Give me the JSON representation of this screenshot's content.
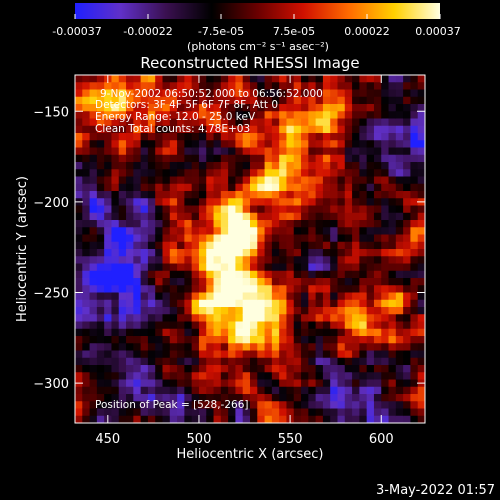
{
  "chart_data": {
    "type": "heatmap",
    "title": "Reconstructed RHESSI Image",
    "xlabel": "Heliocentric X (arcsec)",
    "ylabel": "Heliocentric Y (arcsec)",
    "xlim": [
      432,
      624
    ],
    "ylim": [
      -322,
      -130
    ],
    "x_ticks": [
      450,
      500,
      550,
      600
    ],
    "y_ticks": [
      -150,
      -200,
      -250,
      -300
    ],
    "colorbar": {
      "range": [
        -0.00037,
        0.00037
      ],
      "ticks": [
        "-0.00037",
        "-0.00022",
        "-7.5e-05",
        "7.5e-05",
        "0.00022",
        "0.00037"
      ],
      "label": "(photons cm⁻² s⁻¹ asec⁻²)",
      "colormap": [
        "#2020ff",
        "#6030c8",
        "#3a1050",
        "#000000",
        "#6a0000",
        "#d01000",
        "#ff6a00",
        "#ffd000",
        "#ffffe0"
      ]
    },
    "annotations": {
      "time_range": "9-Nov-2002 06:50:52.000 to 06:56:52.000",
      "detectors": "Detectors: 3F 4F 5F 6F 7F 8F, Att 0",
      "energy_range": "Energy Range: 12.0 - 25.0 keV",
      "clean_line": "Clean     Total counts: 4.78E+03",
      "peak": "Position of Peak = [528,-266]"
    },
    "sources": [
      {
        "x": 517,
        "y": -220,
        "intensity": 1.0
      },
      {
        "x": 532,
        "y": -262,
        "intensity": 1.0
      },
      {
        "x": 512,
        "y": -252,
        "intensity": 0.6
      },
      {
        "x": 548,
        "y": -185,
        "intensity": 0.55
      },
      {
        "x": 455,
        "y": -140,
        "intensity": 0.5
      },
      {
        "x": 572,
        "y": -150,
        "intensity": 0.45
      },
      {
        "x": 590,
        "y": -262,
        "intensity": 0.5
      }
    ],
    "negative_regions": [
      {
        "x": 450,
        "y": -255,
        "intensity": 0.9
      },
      {
        "x": 455,
        "y": -210,
        "intensity": 0.6
      },
      {
        "x": 612,
        "y": -165,
        "intensity": 0.7
      },
      {
        "x": 590,
        "y": -310,
        "intensity": 0.8
      },
      {
        "x": 470,
        "y": -305,
        "intensity": 0.5
      },
      {
        "x": 560,
        "y": -230,
        "intensity": 0.35
      }
    ]
  },
  "footer": {
    "date": "3-May-2022 01:57"
  }
}
